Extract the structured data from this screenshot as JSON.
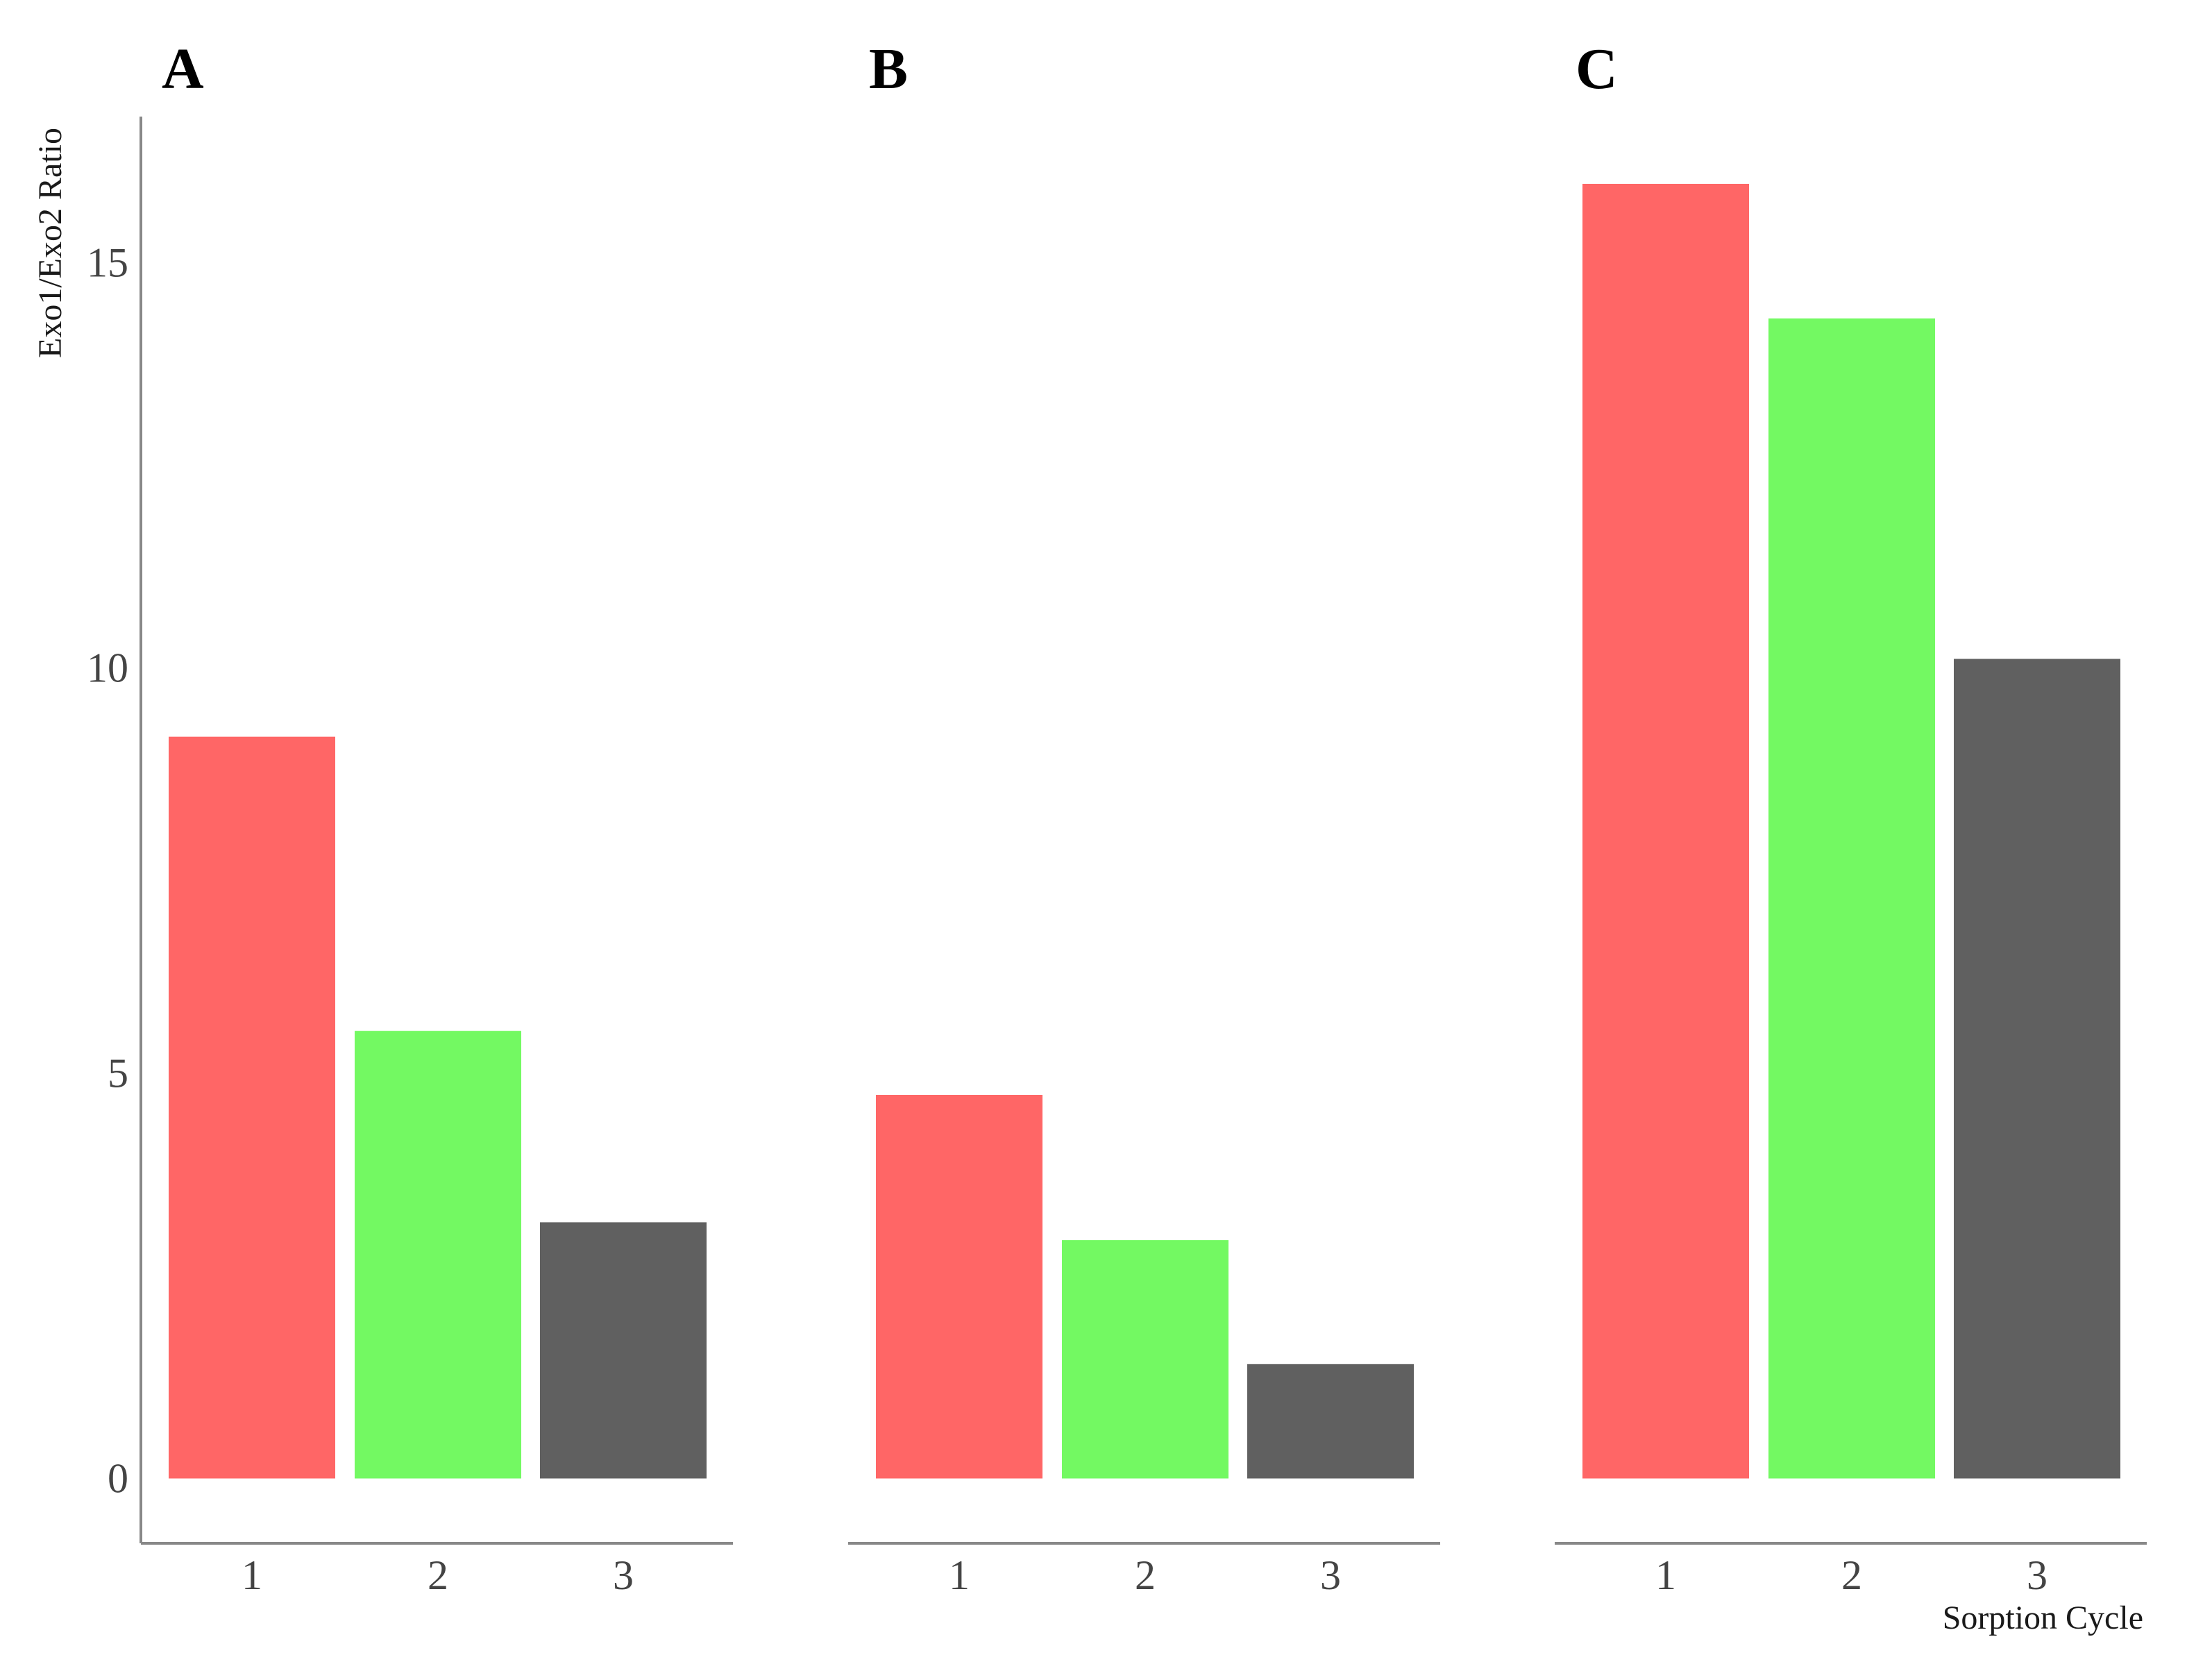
{
  "chart_data": {
    "type": "bar",
    "ylabel": "Exo1/Exo2 Ratio",
    "xlabel": "Sorption Cycle",
    "ylim": [
      -0.8,
      16.8
    ],
    "yticks": [
      0,
      5,
      10,
      15
    ],
    "categories": [
      "1",
      "2",
      "3"
    ],
    "bar_colors": [
      "#FF6666",
      "#73F962",
      "#606060"
    ],
    "grid": false,
    "legend": "none",
    "panels": [
      {
        "label": "A",
        "values": [
          9.15,
          5.52,
          3.16
        ]
      },
      {
        "label": "B",
        "values": [
          4.73,
          2.94,
          1.41
        ]
      },
      {
        "label": "C",
        "values": [
          15.97,
          14.31,
          10.11
        ]
      }
    ]
  }
}
